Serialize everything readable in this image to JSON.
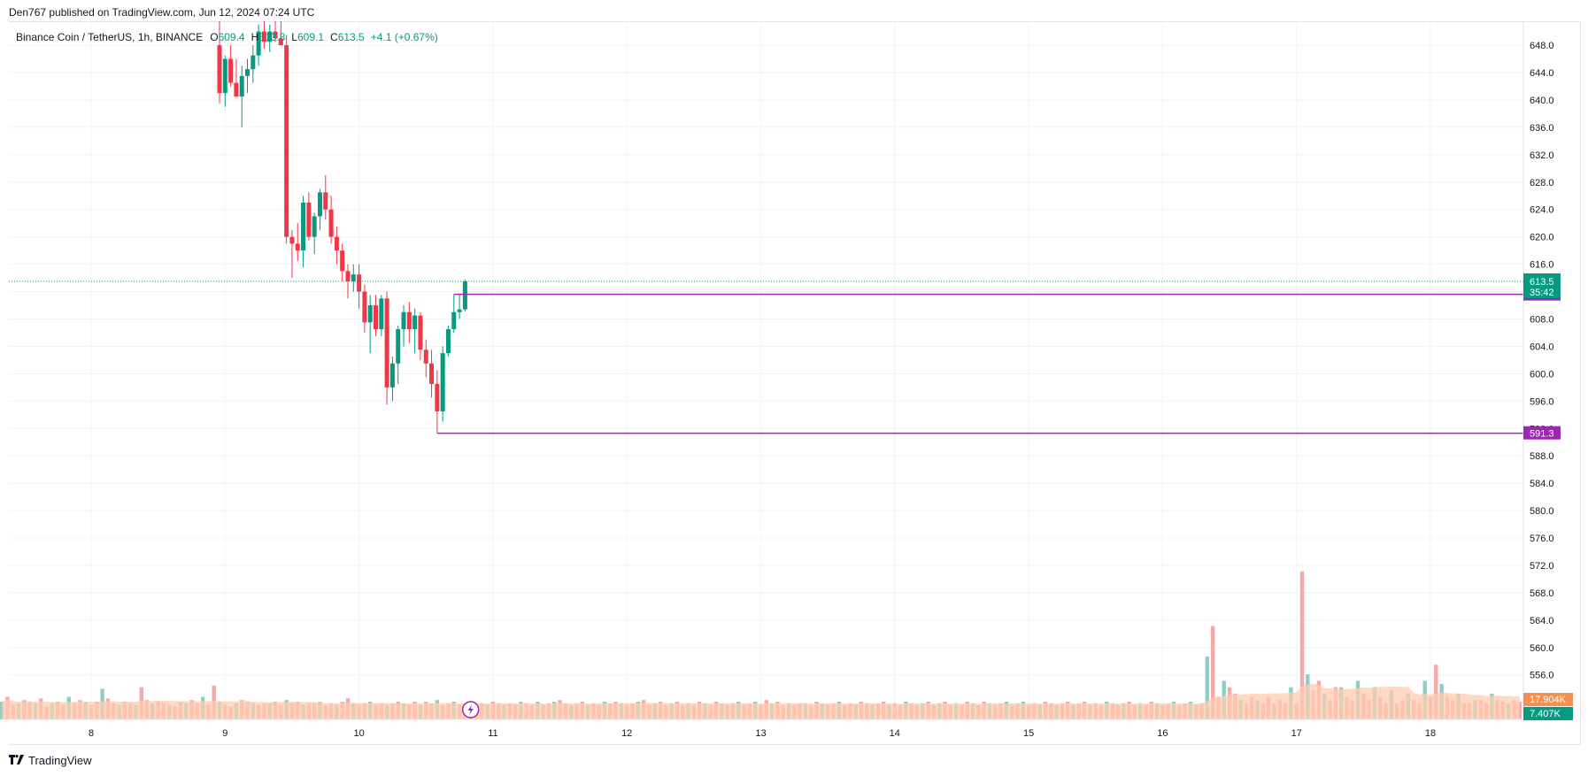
{
  "header": {
    "publisher_line": "Den767 published on TradingView.com, Jun 12, 2024 07:24 UTC"
  },
  "legend": {
    "symbol": "Binance Coin / TetherUS, 1h, BINANCE",
    "o_label": "O",
    "o_value": "609.4",
    "h_label": "H",
    "h_value": "613.8",
    "l_label": "L",
    "l_value": "609.1",
    "c_label": "C",
    "c_value": "613.5",
    "change": "+4.1 (+0.67%)"
  },
  "footer": {
    "brand": "TradingView",
    "logo_icon": "tradingview-logo-icon"
  },
  "colors": {
    "up": "#089981",
    "down": "#f23645",
    "level": "#9c27b0",
    "volume_up": "#8ccfc6",
    "volume_down": "#f7a9a7",
    "volume_ma": "#ffccb0",
    "grid": "#f0f3fa",
    "price_line": "#089981",
    "volume_badge": "#f7904f"
  },
  "chart_data": {
    "type": "candlestick",
    "symbol": "Binance Coin / TetherUS",
    "interval": "1h",
    "exchange": "BINANCE",
    "grid": true,
    "y_range": [
      549.5,
      651.5
    ],
    "y_ticks": [
      "648.0",
      "644.0",
      "640.0",
      "636.0",
      "632.0",
      "628.0",
      "624.0",
      "620.0",
      "616.0",
      "612.0",
      "608.0",
      "604.0",
      "600.0",
      "596.0",
      "592.0",
      "588.0",
      "584.0",
      "580.0",
      "576.0",
      "572.0",
      "568.0",
      "564.0",
      "560.0",
      "556.0"
    ],
    "x_axis": {
      "first_bar_day": 7.5,
      "last_day": 18.7,
      "labels": [
        {
          "day": 8,
          "text": "8"
        },
        {
          "day": 9,
          "text": "9"
        },
        {
          "day": 10,
          "text": "10"
        },
        {
          "day": 11,
          "text": "11"
        },
        {
          "day": 12,
          "text": "12"
        },
        {
          "day": 13,
          "text": "13"
        },
        {
          "day": 14,
          "text": "14"
        },
        {
          "day": 15,
          "text": "15"
        },
        {
          "day": 16,
          "text": "16"
        },
        {
          "day": 17,
          "text": "17"
        },
        {
          "day": 18,
          "text": "18"
        }
      ]
    },
    "candles_start_hour": 215,
    "candles": [
      [
        648.0,
        651.5,
        639.5,
        641.0
      ],
      [
        641.0,
        646.5,
        639.0,
        646.0
      ],
      [
        646.0,
        648.0,
        642.0,
        642.5
      ],
      [
        642.5,
        646.0,
        640.5,
        640.5
      ],
      [
        640.5,
        645.0,
        636.0,
        643.5
      ],
      [
        643.5,
        646.0,
        641.0,
        644.5
      ],
      [
        644.5,
        648.0,
        642.5,
        646.5
      ],
      [
        646.5,
        651.0,
        645.0,
        650.0
      ],
      [
        650.0,
        651.5,
        647.5,
        648.5
      ],
      [
        648.5,
        651.0,
        647.0,
        650.0
      ],
      [
        650.0,
        651.5,
        648.5,
        649.0
      ],
      [
        649.0,
        651.5,
        648.0,
        648.0
      ],
      [
        648.0,
        649.5,
        619.0,
        620.0
      ],
      [
        620.0,
        621.0,
        614.0,
        619.0
      ],
      [
        619.0,
        622.0,
        616.5,
        618.0
      ],
      [
        618.0,
        626.0,
        615.5,
        625.0
      ],
      [
        625.0,
        626.5,
        619.5,
        620.0
      ],
      [
        620.0,
        623.5,
        617.5,
        623.0
      ],
      [
        623.0,
        627.0,
        621.0,
        626.5
      ],
      [
        626.5,
        629.0,
        622.5,
        624.0
      ],
      [
        624.0,
        626.0,
        619.0,
        620.0
      ],
      [
        620.0,
        621.5,
        616.0,
        618.0
      ],
      [
        618.0,
        619.0,
        613.5,
        615.0
      ],
      [
        615.0,
        616.0,
        611.0,
        613.5
      ],
      [
        613.5,
        616.0,
        612.0,
        614.5
      ],
      [
        614.5,
        616.0,
        609.5,
        612.0
      ],
      [
        612.0,
        613.0,
        606.0,
        607.5
      ],
      [
        607.5,
        611.5,
        603.0,
        610.0
      ],
      [
        610.0,
        611.5,
        605.5,
        606.5
      ],
      [
        606.5,
        611.5,
        605.5,
        611.0
      ],
      [
        611.0,
        612.0,
        595.5,
        598.0
      ],
      [
        598.0,
        602.5,
        596.0,
        601.5
      ],
      [
        601.5,
        607.0,
        598.5,
        606.5
      ],
      [
        606.5,
        610.0,
        604.0,
        609.0
      ],
      [
        609.0,
        610.5,
        604.5,
        606.5
      ],
      [
        606.5,
        609.5,
        603.0,
        608.5
      ],
      [
        608.5,
        609.0,
        602.0,
        603.5
      ],
      [
        603.5,
        605.0,
        599.5,
        601.5
      ],
      [
        601.5,
        603.5,
        596.5,
        598.5
      ],
      [
        598.5,
        600.5,
        591.3,
        594.5
      ],
      [
        594.5,
        604.0,
        593.0,
        603.0
      ],
      [
        603.0,
        607.0,
        602.5,
        606.5
      ],
      [
        606.5,
        611.6,
        606.0,
        609.0
      ],
      [
        609.0,
        611.6,
        608.0,
        609.4
      ],
      [
        609.4,
        613.8,
        609.1,
        613.5
      ]
    ],
    "volume": {
      "max": 5.5,
      "start_hour": 8,
      "values": [
        0.55,
        0.7,
        0.45,
        0.5,
        0.6,
        0.55,
        0.5,
        0.65,
        0.4,
        0.5,
        0.55,
        0.45,
        0.7,
        0.5,
        0.6,
        0.55,
        0.45,
        0.55,
        0.95,
        0.65,
        0.5,
        0.45,
        0.55,
        0.5,
        0.45,
        1.0,
        0.6,
        0.5,
        0.55,
        0.5,
        0.45,
        0.4,
        0.55,
        0.5,
        0.6,
        0.5,
        0.7,
        0.45,
        1.05,
        0.55,
        0.45,
        0.4,
        0.5,
        0.6,
        0.55,
        0.5,
        0.45,
        0.5,
        0.5,
        0.55,
        0.45,
        0.6,
        0.5,
        0.55,
        0.45,
        0.5,
        0.5,
        0.55,
        0.45,
        0.5,
        0.45,
        0.55,
        0.65,
        0.5,
        0.45,
        0.5,
        0.55,
        0.45,
        0.5,
        0.45,
        0.5,
        0.55,
        0.5,
        0.45,
        0.55,
        0.45,
        0.55,
        0.5,
        0.6,
        0.45,
        0.5,
        0.55,
        0.45,
        0.5,
        0.55,
        0.45,
        0.5,
        0.45,
        0.55,
        0.5,
        0.45,
        0.5,
        0.45,
        0.55,
        0.5,
        0.45,
        0.55,
        0.45,
        0.5,
        0.55,
        0.6,
        0.5,
        0.45,
        0.5,
        0.55,
        0.45,
        0.5,
        0.45,
        0.55,
        0.5,
        0.55,
        0.5,
        0.45,
        0.5,
        0.55,
        0.6,
        0.45,
        0.5,
        0.55,
        0.45,
        0.5,
        0.55,
        0.45,
        0.5,
        0.45,
        0.55,
        0.5,
        0.45,
        0.55,
        0.5,
        0.45,
        0.5,
        0.55,
        0.45,
        0.5,
        0.55,
        0.45,
        0.6,
        0.5,
        0.55,
        0.45,
        0.5,
        0.45,
        0.5,
        0.5,
        0.45,
        0.55,
        0.5,
        0.45,
        0.5,
        0.55,
        0.45,
        0.5,
        0.45,
        0.55,
        0.5,
        0.45,
        0.5,
        0.55,
        0.45,
        0.5,
        0.45,
        0.55,
        0.5,
        0.45,
        0.5,
        0.55,
        0.45,
        0.5,
        0.55,
        0.45,
        0.5,
        0.45,
        0.55,
        0.5,
        0.45,
        0.55,
        0.5,
        0.45,
        0.5,
        0.55,
        0.45,
        0.5,
        0.55,
        0.45,
        0.5,
        0.45,
        0.55,
        0.5,
        0.45,
        0.5,
        0.55,
        0.45,
        0.5,
        0.55,
        0.45,
        0.5,
        0.45,
        0.55,
        0.5,
        0.45,
        0.5,
        0.55,
        0.45,
        0.5,
        0.45,
        0.55,
        0.5,
        0.45,
        0.5,
        0.55,
        0.45,
        0.5,
        0.55,
        0.45,
        0.5,
        1.95,
        2.9,
        0.7,
        1.2,
        1.0,
        0.8,
        0.6,
        0.5,
        0.7,
        0.6,
        0.5,
        0.7,
        0.5,
        0.6,
        0.5,
        1.0,
        0.5,
        4.6,
        1.4,
        0.9,
        1.2,
        0.8,
        0.6,
        1.0,
        1.0,
        0.7,
        0.6,
        1.2,
        0.8,
        0.6,
        1.0,
        0.7,
        0.5,
        0.9,
        0.5,
        0.6,
        0.8,
        0.6,
        0.5,
        1.2,
        0.7,
        1.7,
        1.1,
        0.7,
        0.6,
        0.8,
        0.5,
        0.5,
        0.6,
        0.6,
        0.5,
        0.8,
        0.6,
        0.55,
        0.5,
        0.6,
        0.55
      ]
    },
    "volume_ma_base": 0.45,
    "levels": [
      {
        "price": 611.6,
        "start_hour": 257,
        "label": "611.6"
      },
      {
        "price": 591.3,
        "start_hour": 254,
        "label": "591.3"
      }
    ],
    "last_price": {
      "price": 613.5,
      "label": "613.5",
      "countdown": "35:42"
    },
    "volume_badges": [
      {
        "text": "17.904K",
        "row": 0
      },
      {
        "text": "7.407K",
        "row": 1
      }
    ],
    "replay_icon": "lightning-icon"
  }
}
